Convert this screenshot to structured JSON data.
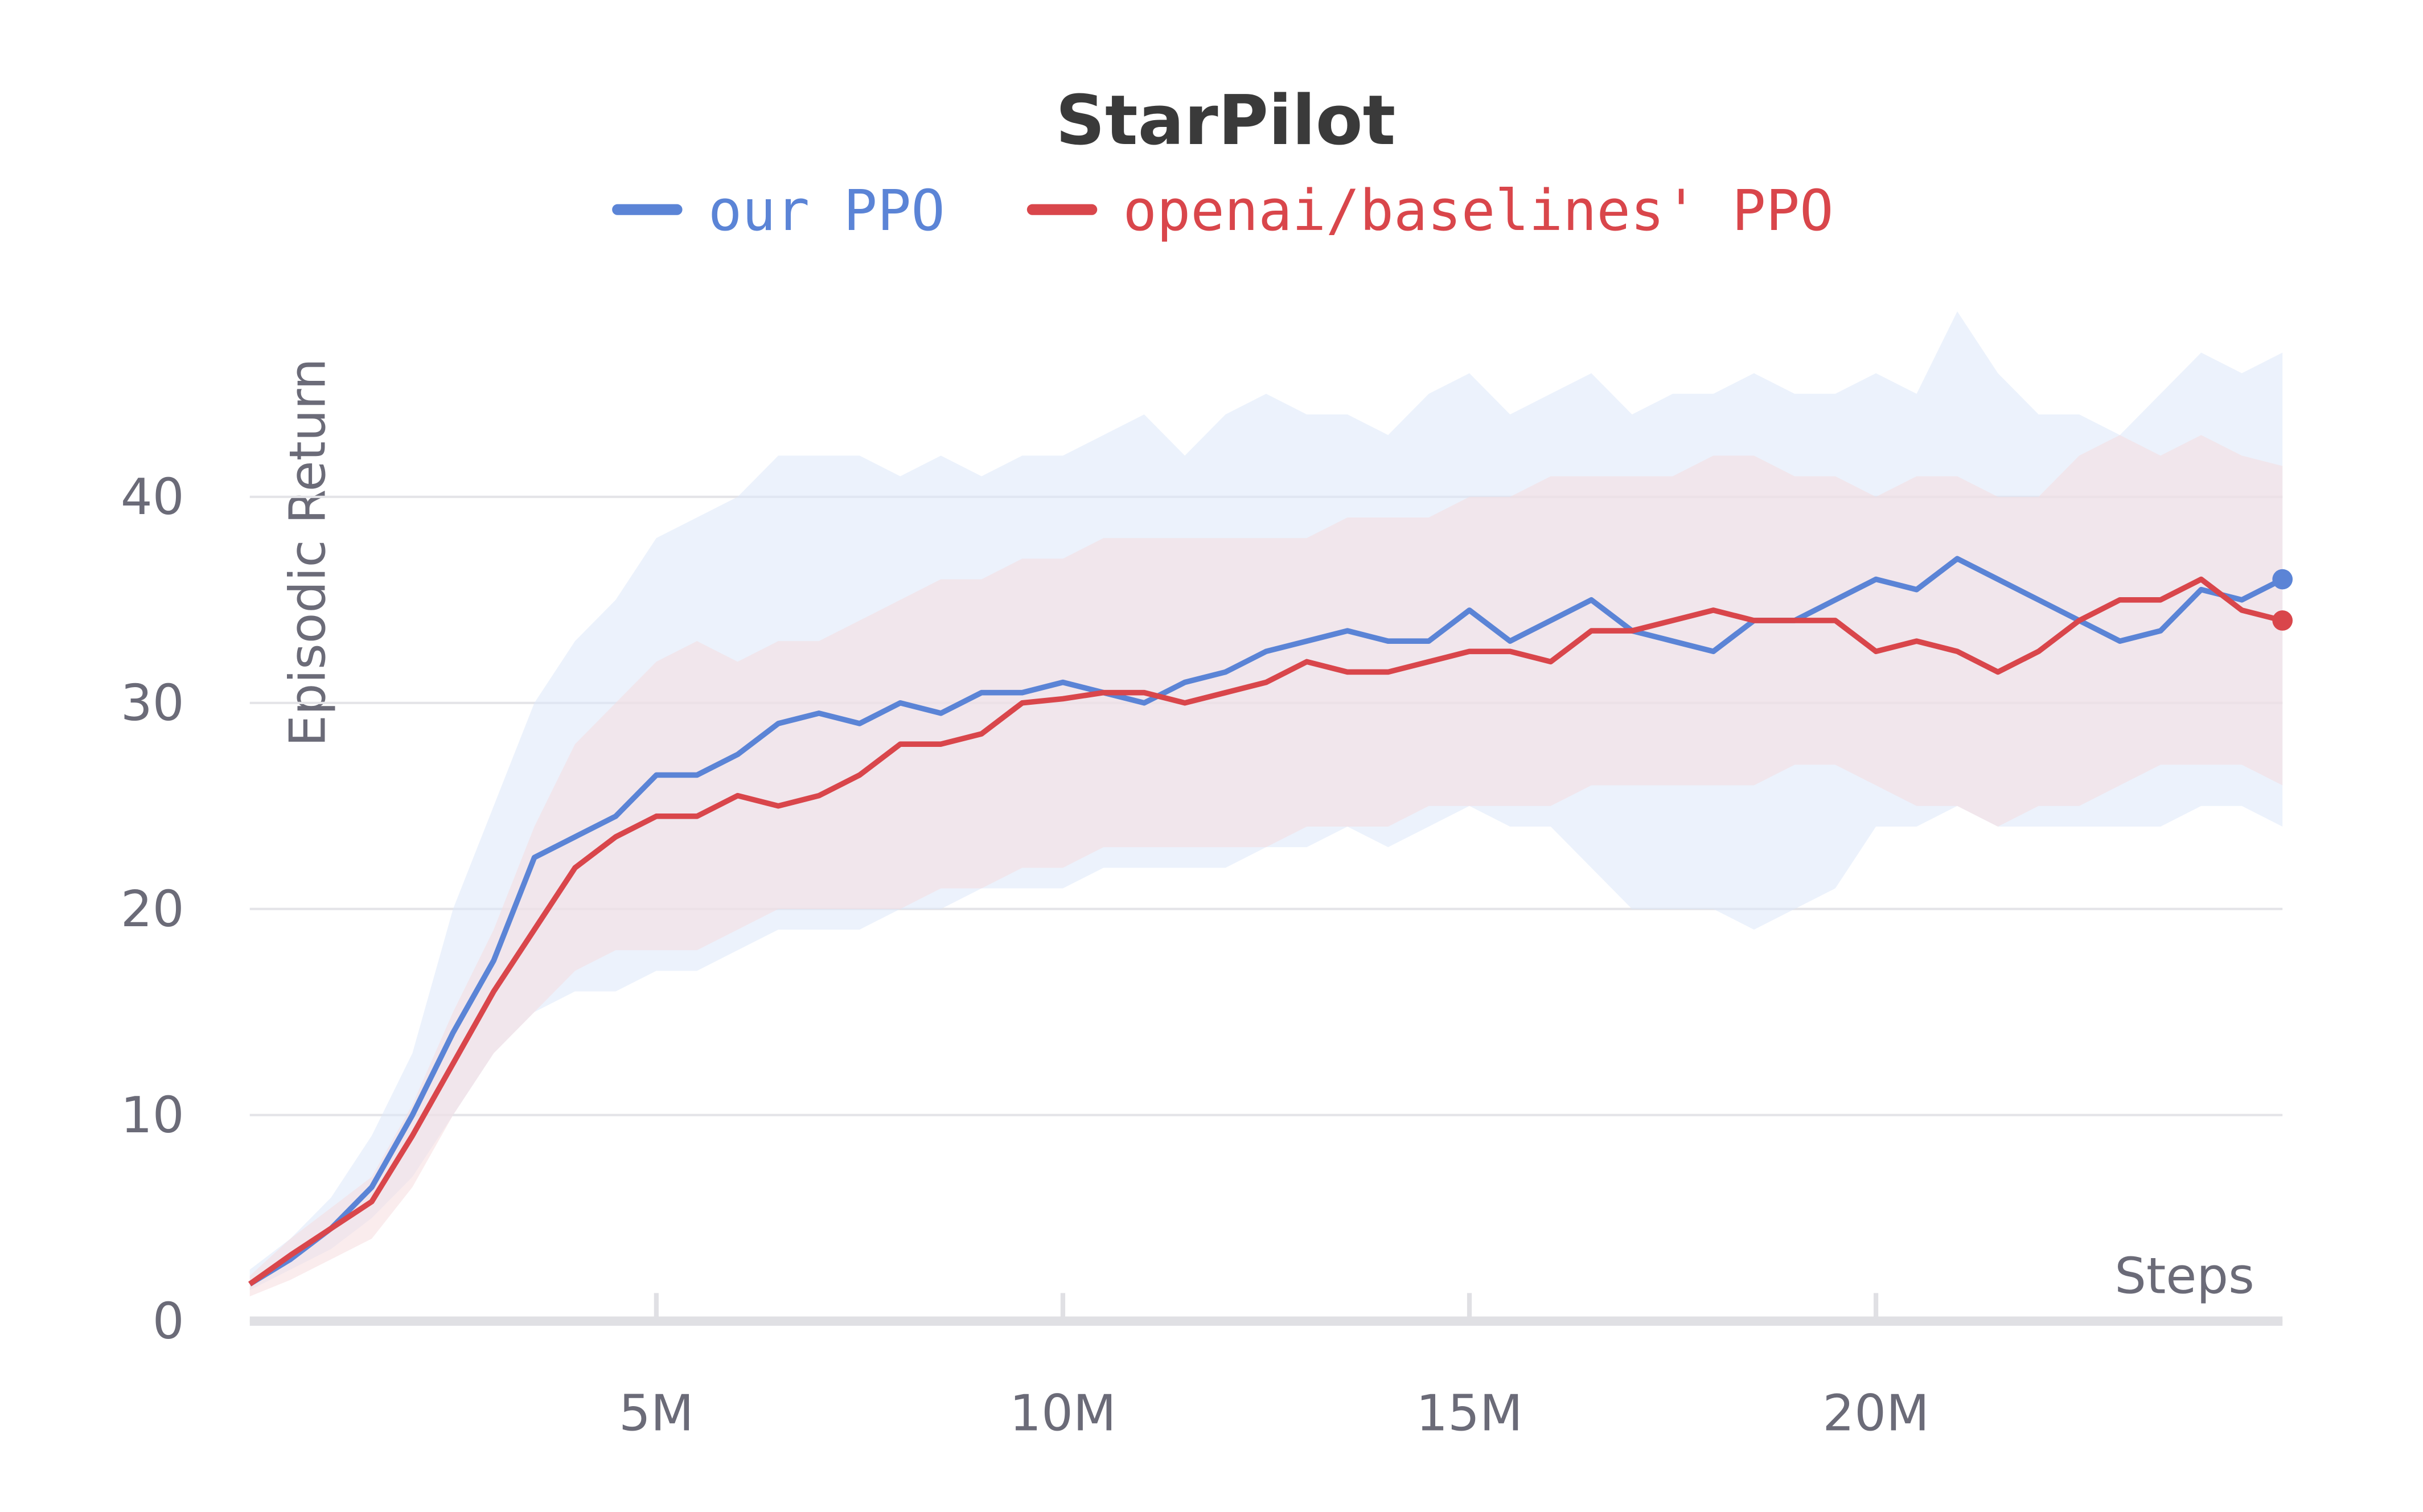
{
  "chart_data": {
    "type": "line",
    "title": "StarPilot",
    "xlabel": "Steps",
    "ylabel": "Episodic Return",
    "x": [
      0,
      500000,
      1000000,
      1500000,
      2000000,
      2500000,
      3000000,
      3500000,
      4000000,
      4500000,
      5000000,
      5500000,
      6000000,
      6500000,
      7000000,
      7500000,
      8000000,
      8500000,
      9000000,
      9500000,
      10000000,
      10500000,
      11000000,
      11500000,
      12000000,
      12500000,
      13000000,
      13500000,
      14000000,
      14500000,
      15000000,
      15500000,
      16000000,
      16500000,
      17000000,
      17500000,
      18000000,
      18500000,
      19000000,
      19500000,
      20000000,
      20500000,
      21000000,
      21500000,
      22000000,
      22500000,
      23000000,
      23500000,
      24000000,
      24500000,
      25000000
    ],
    "series": [
      {
        "name": "our PPO",
        "color": "#5b84d6",
        "band_color": "#dce7fa",
        "values": [
          1.8,
          3,
          4.5,
          6.5,
          10,
          14,
          17.5,
          22.5,
          23.5,
          24.5,
          26.5,
          26.5,
          27.5,
          29,
          29.5,
          29,
          30,
          29.5,
          30.5,
          30.5,
          31,
          30.5,
          30,
          31,
          31.5,
          32.5,
          33,
          33.5,
          33,
          33,
          34.5,
          33,
          34,
          35,
          33.5,
          33,
          32.5,
          34,
          34,
          35,
          36,
          35.5,
          37,
          36,
          35,
          34,
          33,
          33.5,
          35.5,
          35,
          36
        ],
        "upper": [
          2.5,
          4,
          6,
          9,
          13,
          20,
          25,
          30,
          33,
          35,
          38,
          39,
          40,
          42,
          42,
          42,
          41,
          42,
          41,
          42,
          42,
          43,
          44,
          42,
          44,
          45,
          44,
          44,
          43,
          45,
          46,
          44,
          45,
          46,
          44,
          45,
          45,
          46,
          45,
          45,
          46,
          45,
          49,
          46,
          44,
          44,
          43,
          45,
          47,
          46,
          47
        ],
        "lower": [
          1.5,
          2.5,
          3.5,
          5,
          7,
          10,
          13,
          15,
          16,
          16,
          17,
          17,
          18,
          19,
          19,
          19,
          20,
          20,
          21,
          21,
          21,
          22,
          22,
          22,
          22,
          23,
          23,
          24,
          23,
          24,
          25,
          24,
          24,
          22,
          20,
          20,
          20,
          19,
          20,
          21,
          24,
          24,
          25,
          24,
          24,
          24,
          24,
          24,
          25,
          25,
          24
        ]
      },
      {
        "name": "openai/baselines' PPO",
        "color": "#d9464b",
        "band_color": "#f6dcdf",
        "values": [
          1.8,
          3.2,
          4.5,
          5.8,
          9,
          12.5,
          16,
          19,
          22,
          23.5,
          24.5,
          24.5,
          25.5,
          25,
          25.5,
          26.5,
          28,
          28,
          28.5,
          30,
          30.2,
          30.5,
          30.5,
          30,
          30.5,
          31,
          32,
          31.5,
          31.5,
          32,
          32.5,
          32.5,
          32,
          33.5,
          33.5,
          34,
          34.5,
          34,
          34,
          34,
          32.5,
          33,
          32.5,
          31.5,
          32.5,
          34,
          35,
          35,
          36,
          34.5,
          34
        ],
        "upper": [
          2.2,
          4,
          5.5,
          7,
          10.5,
          15,
          19,
          24,
          28,
          30,
          32,
          33,
          32,
          33,
          33,
          34,
          35,
          36,
          36,
          37,
          37,
          38,
          38,
          38,
          38,
          38,
          38,
          39,
          39,
          39,
          40,
          40,
          41,
          41,
          41,
          41,
          42,
          42,
          41,
          41,
          40,
          41,
          41,
          40,
          40,
          42,
          43,
          42,
          43,
          42,
          41.5
        ],
        "lower": [
          1.2,
          2,
          3,
          4,
          6.5,
          10,
          13,
          15,
          17,
          18,
          18,
          18,
          19,
          20,
          20,
          20,
          20,
          21,
          21,
          22,
          22,
          23,
          23,
          23,
          23,
          23,
          24,
          24,
          24,
          25,
          25,
          25,
          25,
          26,
          26,
          26,
          26,
          26,
          27,
          27,
          26,
          25,
          25,
          24,
          25,
          25,
          26,
          27,
          27,
          27,
          26
        ]
      }
    ],
    "xlim": [
      0,
      25000000
    ],
    "xticks": [
      {
        "value": 5000000,
        "label": "5M"
      },
      {
        "value": 10000000,
        "label": "10M"
      },
      {
        "value": 15000000,
        "label": "15M"
      },
      {
        "value": 20000000,
        "label": "20M"
      }
    ],
    "ylim": [
      0,
      50
    ],
    "yticks": [
      0,
      10,
      20,
      30,
      40
    ],
    "grid": true
  }
}
